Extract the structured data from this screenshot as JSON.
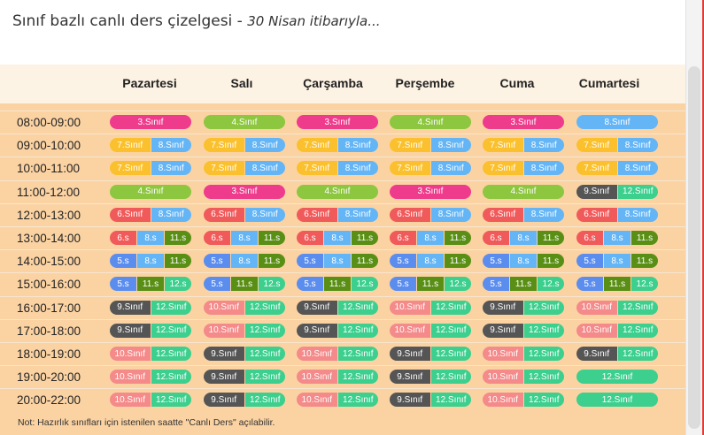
{
  "title": "Sınıf bazlı canlı ders çizelgesi - ",
  "subtitle": "30 Nisan itibarıyla...",
  "days": [
    "Pazartesi",
    "Salı",
    "Çarşamba",
    "Perşembe",
    "Cuma",
    "Cumartesi"
  ],
  "note": "Not: Hazırlık sınıfları için istenilen saatte \"Canlı Ders\" açılabilir.",
  "colors": {
    "3": "#ef3b8c",
    "4": "#8dc63f",
    "5": "#5b8def",
    "6": "#f05a5a",
    "7": "#fbc02d",
    "8": "#64b5f6",
    "9": "#555555",
    "10": "#f48a8a",
    "11": "#5a8f16",
    "12": "#3ccf8e"
  },
  "rows": [
    {
      "time": "08:00-09:00",
      "cells": [
        [
          {
            "g": "3",
            "t": "3.Sınıf"
          }
        ],
        [
          {
            "g": "4",
            "t": "4.Sınıf"
          }
        ],
        [
          {
            "g": "3",
            "t": "3.Sınıf"
          }
        ],
        [
          {
            "g": "4",
            "t": "4.Sınıf"
          }
        ],
        [
          {
            "g": "3",
            "t": "3.Sınıf"
          }
        ],
        [
          {
            "g": "8",
            "t": "8.Sınıf"
          }
        ]
      ]
    },
    {
      "time": "09:00-10:00",
      "cells": [
        [
          {
            "g": "7",
            "t": "7.Sınıf"
          },
          {
            "g": "8",
            "t": "8.Sınıf"
          }
        ],
        [
          {
            "g": "7",
            "t": "7.Sınıf"
          },
          {
            "g": "8",
            "t": "8.Sınıf"
          }
        ],
        [
          {
            "g": "7",
            "t": "7.Sınıf"
          },
          {
            "g": "8",
            "t": "8.Sınıf"
          }
        ],
        [
          {
            "g": "7",
            "t": "7.Sınıf"
          },
          {
            "g": "8",
            "t": "8.Sınıf"
          }
        ],
        [
          {
            "g": "7",
            "t": "7.Sınıf"
          },
          {
            "g": "8",
            "t": "8.Sınıf"
          }
        ],
        [
          {
            "g": "7",
            "t": "7.Sınıf"
          },
          {
            "g": "8",
            "t": "8.Sınıf"
          }
        ]
      ]
    },
    {
      "time": "10:00-11:00",
      "cells": [
        [
          {
            "g": "7",
            "t": "7.Sınıf"
          },
          {
            "g": "8",
            "t": "8.Sınıf"
          }
        ],
        [
          {
            "g": "7",
            "t": "7.Sınıf"
          },
          {
            "g": "8",
            "t": "8.Sınıf"
          }
        ],
        [
          {
            "g": "7",
            "t": "7.Sınıf"
          },
          {
            "g": "8",
            "t": "8.Sınıf"
          }
        ],
        [
          {
            "g": "7",
            "t": "7.Sınıf"
          },
          {
            "g": "8",
            "t": "8.Sınıf"
          }
        ],
        [
          {
            "g": "7",
            "t": "7.Sınıf"
          },
          {
            "g": "8",
            "t": "8.Sınıf"
          }
        ],
        [
          {
            "g": "7",
            "t": "7.Sınıf"
          },
          {
            "g": "8",
            "t": "8.Sınıf"
          }
        ]
      ]
    },
    {
      "time": "11:00-12:00",
      "cells": [
        [
          {
            "g": "4",
            "t": "4.Sınıf"
          }
        ],
        [
          {
            "g": "3",
            "t": "3.Sınıf"
          }
        ],
        [
          {
            "g": "4",
            "t": "4.Sınıf"
          }
        ],
        [
          {
            "g": "3",
            "t": "3.Sınıf"
          }
        ],
        [
          {
            "g": "4",
            "t": "4.Sınıf"
          }
        ],
        [
          {
            "g": "9",
            "t": "9.Sınıf"
          },
          {
            "g": "12",
            "t": "12.Sınıf"
          }
        ]
      ]
    },
    {
      "time": "12:00-13:00",
      "cells": [
        [
          {
            "g": "6",
            "t": "6.Sınıf"
          },
          {
            "g": "8",
            "t": "8.Sınıf"
          }
        ],
        [
          {
            "g": "6",
            "t": "6.Sınıf"
          },
          {
            "g": "8",
            "t": "8.Sınıf"
          }
        ],
        [
          {
            "g": "6",
            "t": "6.Sınıf"
          },
          {
            "g": "8",
            "t": "8.Sınıf"
          }
        ],
        [
          {
            "g": "6",
            "t": "6.Sınıf"
          },
          {
            "g": "8",
            "t": "8.Sınıf"
          }
        ],
        [
          {
            "g": "6",
            "t": "6.Sınıf"
          },
          {
            "g": "8",
            "t": "8.Sınıf"
          }
        ],
        [
          {
            "g": "6",
            "t": "6.Sınıf"
          },
          {
            "g": "8",
            "t": "8.Sınıf"
          }
        ]
      ]
    },
    {
      "time": "13:00-14:00",
      "cells": [
        [
          {
            "g": "6",
            "t": "6.s"
          },
          {
            "g": "8",
            "t": "8.s"
          },
          {
            "g": "11",
            "t": "11.s"
          }
        ],
        [
          {
            "g": "6",
            "t": "6.s"
          },
          {
            "g": "8",
            "t": "8.s"
          },
          {
            "g": "11",
            "t": "11.s"
          }
        ],
        [
          {
            "g": "6",
            "t": "6.s"
          },
          {
            "g": "8",
            "t": "8.s"
          },
          {
            "g": "11",
            "t": "11.s"
          }
        ],
        [
          {
            "g": "6",
            "t": "6.s"
          },
          {
            "g": "8",
            "t": "8.s"
          },
          {
            "g": "11",
            "t": "11.s"
          }
        ],
        [
          {
            "g": "6",
            "t": "6.s"
          },
          {
            "g": "8",
            "t": "8.s"
          },
          {
            "g": "11",
            "t": "11.s"
          }
        ],
        [
          {
            "g": "6",
            "t": "6.s"
          },
          {
            "g": "8",
            "t": "8.s"
          },
          {
            "g": "11",
            "t": "11.s"
          }
        ]
      ]
    },
    {
      "time": "14:00-15:00",
      "cells": [
        [
          {
            "g": "5",
            "t": "5.s"
          },
          {
            "g": "8",
            "t": "8.s"
          },
          {
            "g": "11",
            "t": "11.s"
          }
        ],
        [
          {
            "g": "5",
            "t": "5.s"
          },
          {
            "g": "8",
            "t": "8.s"
          },
          {
            "g": "11",
            "t": "11.s"
          }
        ],
        [
          {
            "g": "5",
            "t": "5.s"
          },
          {
            "g": "8",
            "t": "8.s"
          },
          {
            "g": "11",
            "t": "11.s"
          }
        ],
        [
          {
            "g": "5",
            "t": "5.s"
          },
          {
            "g": "8",
            "t": "8.s"
          },
          {
            "g": "11",
            "t": "11.s"
          }
        ],
        [
          {
            "g": "5",
            "t": "5.s"
          },
          {
            "g": "8",
            "t": "8.s"
          },
          {
            "g": "11",
            "t": "11.s"
          }
        ],
        [
          {
            "g": "5",
            "t": "5.s"
          },
          {
            "g": "8",
            "t": "8.s"
          },
          {
            "g": "11",
            "t": "11.s"
          }
        ]
      ]
    },
    {
      "time": "15:00-16:00",
      "cells": [
        [
          {
            "g": "5",
            "t": "5.s"
          },
          {
            "g": "11",
            "t": "11.s"
          },
          {
            "g": "12",
            "t": "12.s"
          }
        ],
        [
          {
            "g": "5",
            "t": "5.s"
          },
          {
            "g": "11",
            "t": "11.s"
          },
          {
            "g": "12",
            "t": "12.s"
          }
        ],
        [
          {
            "g": "5",
            "t": "5.s"
          },
          {
            "g": "11",
            "t": "11.s"
          },
          {
            "g": "12",
            "t": "12.s"
          }
        ],
        [
          {
            "g": "5",
            "t": "5.s"
          },
          {
            "g": "11",
            "t": "11.s"
          },
          {
            "g": "12",
            "t": "12.s"
          }
        ],
        [
          {
            "g": "5",
            "t": "5.s"
          },
          {
            "g": "11",
            "t": "11.s"
          },
          {
            "g": "12",
            "t": "12.s"
          }
        ],
        [
          {
            "g": "5",
            "t": "5.s"
          },
          {
            "g": "11",
            "t": "11.s"
          },
          {
            "g": "12",
            "t": "12.s"
          }
        ]
      ]
    },
    {
      "time": "16:00-17:00",
      "cells": [
        [
          {
            "g": "9",
            "t": "9.Sınıf"
          },
          {
            "g": "12",
            "t": "12.Sınıf"
          }
        ],
        [
          {
            "g": "10",
            "t": "10.Sınıf"
          },
          {
            "g": "12",
            "t": "12.Sınıf"
          }
        ],
        [
          {
            "g": "9",
            "t": "9.Sınıf"
          },
          {
            "g": "12",
            "t": "12.Sınıf"
          }
        ],
        [
          {
            "g": "10",
            "t": "10.Sınıf"
          },
          {
            "g": "12",
            "t": "12.Sınıf"
          }
        ],
        [
          {
            "g": "9",
            "t": "9.Sınıf"
          },
          {
            "g": "12",
            "t": "12.Sınıf"
          }
        ],
        [
          {
            "g": "10",
            "t": "10.Sınıf"
          },
          {
            "g": "12",
            "t": "12.Sınıf"
          }
        ]
      ]
    },
    {
      "time": "17:00-18:00",
      "cells": [
        [
          {
            "g": "9",
            "t": "9.Sınıf"
          },
          {
            "g": "12",
            "t": "12.Sınıf"
          }
        ],
        [
          {
            "g": "10",
            "t": "10.Sınıf"
          },
          {
            "g": "12",
            "t": "12.Sınıf"
          }
        ],
        [
          {
            "g": "9",
            "t": "9.Sınıf"
          },
          {
            "g": "12",
            "t": "12.Sınıf"
          }
        ],
        [
          {
            "g": "10",
            "t": "10.Sınıf"
          },
          {
            "g": "12",
            "t": "12.Sınıf"
          }
        ],
        [
          {
            "g": "9",
            "t": "9.Sınıf"
          },
          {
            "g": "12",
            "t": "12.Sınıf"
          }
        ],
        [
          {
            "g": "10",
            "t": "10.Sınıf"
          },
          {
            "g": "12",
            "t": "12.Sınıf"
          }
        ]
      ]
    },
    {
      "time": "18:00-19:00",
      "cells": [
        [
          {
            "g": "10",
            "t": "10.Sınıf"
          },
          {
            "g": "12",
            "t": "12.Sınıf"
          }
        ],
        [
          {
            "g": "9",
            "t": "9.Sınıf"
          },
          {
            "g": "12",
            "t": "12.Sınıf"
          }
        ],
        [
          {
            "g": "10",
            "t": "10.Sınıf"
          },
          {
            "g": "12",
            "t": "12.Sınıf"
          }
        ],
        [
          {
            "g": "9",
            "t": "9.Sınıf"
          },
          {
            "g": "12",
            "t": "12.Sınıf"
          }
        ],
        [
          {
            "g": "10",
            "t": "10.Sınıf"
          },
          {
            "g": "12",
            "t": "12.Sınıf"
          }
        ],
        [
          {
            "g": "9",
            "t": "9.Sınıf"
          },
          {
            "g": "12",
            "t": "12.Sınıf"
          }
        ]
      ]
    },
    {
      "time": "19:00-20:00",
      "cells": [
        [
          {
            "g": "10",
            "t": "10.Sınıf"
          },
          {
            "g": "12",
            "t": "12.Sınıf"
          }
        ],
        [
          {
            "g": "9",
            "t": "9.Sınıf"
          },
          {
            "g": "12",
            "t": "12.Sınıf"
          }
        ],
        [
          {
            "g": "10",
            "t": "10.Sınıf"
          },
          {
            "g": "12",
            "t": "12.Sınıf"
          }
        ],
        [
          {
            "g": "9",
            "t": "9.Sınıf"
          },
          {
            "g": "12",
            "t": "12.Sınıf"
          }
        ],
        [
          {
            "g": "10",
            "t": "10.Sınıf"
          },
          {
            "g": "12",
            "t": "12.Sınıf"
          }
        ],
        [
          {
            "g": "12",
            "t": "12.Sınıf"
          }
        ]
      ]
    },
    {
      "time": "20:00-22:00",
      "cells": [
        [
          {
            "g": "10",
            "t": "10.Sınıf"
          },
          {
            "g": "12",
            "t": "12.Sınıf"
          }
        ],
        [
          {
            "g": "9",
            "t": "9.Sınıf"
          },
          {
            "g": "12",
            "t": "12.Sınıf"
          }
        ],
        [
          {
            "g": "10",
            "t": "10.Sınıf"
          },
          {
            "g": "12",
            "t": "12.Sınıf"
          }
        ],
        [
          {
            "g": "9",
            "t": "9.Sınıf"
          },
          {
            "g": "12",
            "t": "12.Sınıf"
          }
        ],
        [
          {
            "g": "10",
            "t": "10.Sınıf"
          },
          {
            "g": "12",
            "t": "12.Sınıf"
          }
        ],
        [
          {
            "g": "12",
            "t": "12.Sınıf"
          }
        ]
      ]
    }
  ]
}
